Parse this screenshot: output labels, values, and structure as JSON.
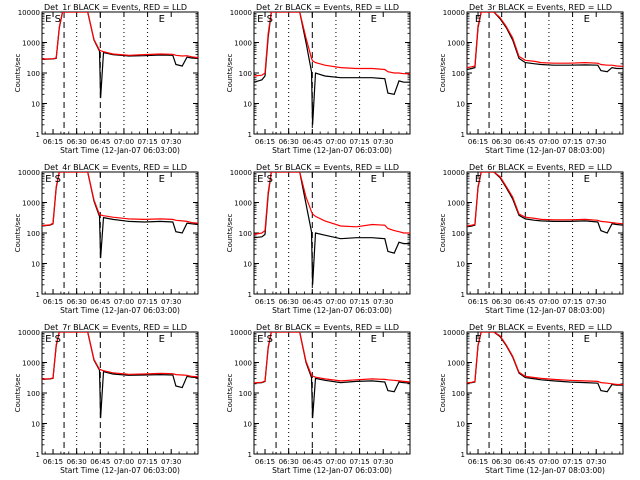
{
  "figure": {
    "xlabel": "Start Time (12-Jan-07 06:03:00)",
    "ylabel": "Counts/sec",
    "xticks": [
      "06:15",
      "06:30",
      "06:45",
      "07:00",
      "07:15",
      "07:30"
    ],
    "yticks": [
      "1",
      "10",
      "100",
      "1000",
      "10000"
    ]
  },
  "chart_data": [
    {
      "type": "line",
      "title": "Det_1r BLACK = Events, RED = LLD",
      "flags": [
        "E",
        "S",
        "E"
      ],
      "xlabel": "Start Time (12-Jan-07 06:03:00)",
      "ylabel": "Counts/sec",
      "ylim": [
        1,
        10000
      ],
      "yscale": "log",
      "xlim_min": [
        5,
        104
      ],
      "x": [
        5,
        12,
        14,
        16,
        18,
        20,
        22,
        24,
        26,
        30,
        34,
        38,
        41.5,
        42.2,
        44,
        50,
        60,
        70,
        80,
        88,
        90,
        94,
        97,
        100,
        104
      ],
      "series": [
        {
          "name": "Events",
          "color": "#000000",
          "values": [
            280,
            290,
            300,
            3000,
            10000,
            10000,
            10000,
            10000,
            10000,
            10000,
            10000,
            1200,
            520,
            15,
            470,
            400,
            360,
            370,
            390,
            380,
            190,
            170,
            330,
            310,
            300
          ]
        },
        {
          "name": "LLD",
          "color": "#ff0000",
          "values": [
            285,
            295,
            310,
            3200,
            10000,
            10000,
            10000,
            10000,
            10000,
            10000,
            10000,
            1250,
            560,
            540,
            500,
            420,
            380,
            400,
            420,
            410,
            380,
            360,
            370,
            340,
            320
          ]
        }
      ]
    },
    {
      "type": "line",
      "title": "Det_2r BLACK = Events, RED = LLD",
      "flags": [
        "E",
        "S",
        "E"
      ],
      "xlabel": "Start Time (12-Jan-07 06:03:00)",
      "ylabel": "Counts/sec",
      "ylim": [
        1,
        10000
      ],
      "yscale": "log",
      "xlim_min": [
        5,
        104
      ],
      "x": [
        5,
        10,
        12,
        14,
        16,
        18,
        20,
        24,
        30,
        34,
        38,
        41.5,
        42.2,
        44,
        50,
        60,
        70,
        80,
        88,
        90,
        94,
        97,
        100,
        104
      ],
      "series": [
        {
          "name": "Events",
          "color": "#000000",
          "values": [
            50,
            60,
            80,
            1500,
            10000,
            10000,
            10000,
            10000,
            10000,
            10000,
            1000,
            110,
            2,
            100,
            80,
            70,
            70,
            70,
            65,
            22,
            20,
            55,
            50,
            50
          ]
        },
        {
          "name": "LLD",
          "color": "#ff0000",
          "values": [
            80,
            85,
            100,
            2000,
            10000,
            10000,
            10000,
            10000,
            10000,
            10000,
            1400,
            300,
            250,
            220,
            180,
            150,
            140,
            140,
            130,
            110,
            100,
            100,
            95,
            95
          ]
        }
      ]
    },
    {
      "type": "line",
      "title": "Det_3r BLACK = Events, RED = LLD",
      "flags": [
        "E",
        "E"
      ],
      "xlabel": "Start Time (12-Jan-07 08:03:00)",
      "ylabel": "Counts/sec",
      "ylim": [
        1,
        10000
      ],
      "yscale": "log",
      "xlim_min": [
        5,
        104
      ],
      "x": [
        5,
        8,
        10,
        12,
        14,
        16,
        18,
        22,
        26,
        30,
        34,
        38,
        42,
        48,
        52,
        60,
        70,
        80,
        88,
        90,
        94,
        97,
        100,
        104
      ],
      "series": [
        {
          "name": "Events",
          "color": "#000000",
          "values": [
            130,
            140,
            150,
            3000,
            10000,
            10000,
            10000,
            10000,
            6000,
            3000,
            1200,
            300,
            220,
            200,
            190,
            180,
            180,
            185,
            180,
            120,
            110,
            150,
            140,
            140
          ]
        },
        {
          "name": "LLD",
          "color": "#ff0000",
          "values": [
            150,
            160,
            170,
            3500,
            10000,
            10000,
            10000,
            10000,
            6500,
            3300,
            1400,
            350,
            260,
            240,
            220,
            210,
            210,
            220,
            210,
            190,
            180,
            180,
            170,
            165
          ]
        }
      ]
    },
    {
      "type": "line",
      "title": "Det_4r BLACK = Events, RED = LLD",
      "flags": [
        "E",
        "S",
        "E"
      ],
      "xlabel": "Start Time (12-Jan-07 06:03:00)",
      "ylabel": "Counts/sec",
      "ylim": [
        1,
        10000
      ],
      "yscale": "log",
      "xlim_min": [
        5,
        104
      ],
      "x": [
        5,
        10,
        12,
        14,
        16,
        18,
        22,
        26,
        30,
        34,
        38,
        41.5,
        42.2,
        44,
        50,
        60,
        70,
        80,
        88,
        90,
        94,
        97,
        100,
        104
      ],
      "series": [
        {
          "name": "Events",
          "color": "#000000",
          "values": [
            170,
            180,
            200,
            3000,
            10000,
            10000,
            10000,
            10000,
            10000,
            10000,
            1100,
            350,
            15,
            320,
            280,
            240,
            230,
            240,
            230,
            110,
            100,
            210,
            200,
            190
          ]
        },
        {
          "name": "LLD",
          "color": "#ff0000",
          "values": [
            175,
            185,
            210,
            3300,
            10000,
            10000,
            10000,
            10000,
            10000,
            10000,
            1200,
            400,
            390,
            370,
            330,
            290,
            280,
            290,
            280,
            260,
            250,
            240,
            220,
            210
          ]
        }
      ]
    },
    {
      "type": "line",
      "title": "Det_5r BLACK = Events, RED = LLD",
      "flags": [
        "E",
        "S",
        "E"
      ],
      "xlabel": "Start Time (12-Jan-07 06:03:00)",
      "ylabel": "Counts/sec",
      "ylim": [
        1,
        10000
      ],
      "yscale": "log",
      "xlim_min": [
        5,
        104
      ],
      "x": [
        5,
        10,
        12,
        14,
        16,
        18,
        22,
        26,
        30,
        34,
        38,
        41.5,
        42.2,
        44,
        50,
        60,
        70,
        80,
        88,
        90,
        94,
        97,
        100,
        104
      ],
      "series": [
        {
          "name": "Events",
          "color": "#000000",
          "values": [
            70,
            75,
            90,
            1800,
            10000,
            10000,
            10000,
            10000,
            10000,
            10000,
            900,
            110,
            2,
            100,
            85,
            65,
            70,
            70,
            65,
            25,
            22,
            50,
            45,
            45
          ]
        },
        {
          "name": "LLD",
          "color": "#ff0000",
          "values": [
            90,
            100,
            120,
            2200,
            10000,
            10000,
            10000,
            10000,
            10000,
            10000,
            1500,
            500,
            420,
            350,
            250,
            170,
            160,
            190,
            180,
            140,
            120,
            110,
            100,
            100
          ]
        }
      ]
    },
    {
      "type": "line",
      "title": "Det_6r BLACK = Events, RED = LLD",
      "flags": [
        "E",
        "E"
      ],
      "xlabel": "Start Time (12-Jan-07 08:03:00)",
      "ylabel": "Counts/sec",
      "ylim": [
        1,
        10000
      ],
      "yscale": "log",
      "xlim_min": [
        5,
        104
      ],
      "x": [
        5,
        8,
        10,
        12,
        14,
        16,
        18,
        22,
        26,
        30,
        34,
        38,
        42,
        48,
        52,
        60,
        70,
        80,
        88,
        90,
        94,
        97,
        100,
        104
      ],
      "series": [
        {
          "name": "Events",
          "color": "#000000",
          "values": [
            160,
            170,
            180,
            3000,
            10000,
            10000,
            10000,
            10000,
            6500,
            3000,
            1300,
            380,
            290,
            260,
            250,
            240,
            240,
            250,
            230,
            120,
            100,
            200,
            190,
            180
          ]
        },
        {
          "name": "LLD",
          "color": "#ff0000",
          "values": [
            170,
            180,
            190,
            3400,
            10000,
            10000,
            10000,
            10000,
            7000,
            3300,
            1500,
            420,
            330,
            300,
            280,
            270,
            270,
            280,
            260,
            240,
            230,
            220,
            210,
            200
          ]
        }
      ]
    },
    {
      "type": "line",
      "title": "Det_7r BLACK = Events, RED = LLD",
      "flags": [
        "E",
        "S",
        "E"
      ],
      "xlabel": "Start Time (12-Jan-07 06:03:00)",
      "ylabel": "Counts/sec",
      "ylim": [
        1,
        10000
      ],
      "yscale": "log",
      "xlim_min": [
        5,
        104
      ],
      "x": [
        5,
        10,
        12,
        14,
        16,
        18,
        22,
        26,
        30,
        34,
        38,
        41.5,
        42.2,
        44,
        50,
        60,
        70,
        80,
        88,
        90,
        94,
        97,
        100,
        104
      ],
      "series": [
        {
          "name": "Events",
          "color": "#000000",
          "values": [
            280,
            290,
            300,
            3500,
            10000,
            10000,
            10000,
            10000,
            10000,
            10000,
            1200,
            560,
            15,
            500,
            420,
            380,
            390,
            400,
            390,
            170,
            150,
            350,
            330,
            320
          ]
        },
        {
          "name": "LLD",
          "color": "#ff0000",
          "values": [
            285,
            295,
            310,
            3800,
            10000,
            10000,
            10000,
            10000,
            10000,
            10000,
            1250,
            600,
            580,
            540,
            460,
            410,
            420,
            440,
            430,
            400,
            390,
            380,
            350,
            340
          ]
        }
      ]
    },
    {
      "type": "line",
      "title": "Det_8r BLACK = Events, RED = LLD",
      "flags": [
        "E",
        "S",
        "E"
      ],
      "xlabel": "Start Time (12-Jan-07 06:03:00)",
      "ylabel": "Counts/sec",
      "ylim": [
        1,
        10000
      ],
      "yscale": "log",
      "xlim_min": [
        5,
        104
      ],
      "x": [
        5,
        10,
        12,
        14,
        16,
        18,
        22,
        26,
        30,
        34,
        38,
        41.5,
        42.2,
        44,
        50,
        60,
        70,
        80,
        88,
        90,
        94,
        97,
        100,
        104
      ],
      "series": [
        {
          "name": "Events",
          "color": "#000000",
          "values": [
            210,
            220,
            240,
            3000,
            10000,
            10000,
            10000,
            10000,
            10000,
            10000,
            1000,
            320,
            15,
            300,
            260,
            220,
            240,
            250,
            230,
            120,
            110,
            230,
            220,
            210
          ]
        },
        {
          "name": "LLD",
          "color": "#ff0000",
          "values": [
            215,
            225,
            250,
            3300,
            10000,
            10000,
            10000,
            10000,
            10000,
            10000,
            1100,
            380,
            360,
            330,
            290,
            250,
            270,
            290,
            280,
            270,
            260,
            250,
            240,
            230
          ]
        }
      ]
    },
    {
      "type": "line",
      "title": "Det_9r BLACK = Events, RED = LLD",
      "flags": [
        "E",
        "E"
      ],
      "xlabel": "Start Time (12-Jan-07 08:03:00)",
      "ylabel": "Counts/sec",
      "ylim": [
        1,
        10000
      ],
      "yscale": "log",
      "xlim_min": [
        5,
        104
      ],
      "x": [
        5,
        8,
        10,
        12,
        14,
        16,
        18,
        22,
        26,
        30,
        34,
        38,
        42,
        48,
        52,
        60,
        70,
        80,
        88,
        90,
        94,
        97,
        100,
        104
      ],
      "series": [
        {
          "name": "Events",
          "color": "#000000",
          "values": [
            210,
            220,
            230,
            3500,
            10000,
            10000,
            10000,
            10000,
            7000,
            3500,
            1500,
            450,
            320,
            290,
            270,
            250,
            230,
            220,
            210,
            120,
            110,
            190,
            180,
            180
          ]
        },
        {
          "name": "LLD",
          "color": "#ff0000",
          "values": [
            215,
            225,
            240,
            3800,
            10000,
            10000,
            10000,
            10000,
            7500,
            3700,
            1600,
            480,
            350,
            320,
            300,
            280,
            260,
            250,
            240,
            220,
            210,
            200,
            190,
            190
          ]
        }
      ]
    }
  ]
}
